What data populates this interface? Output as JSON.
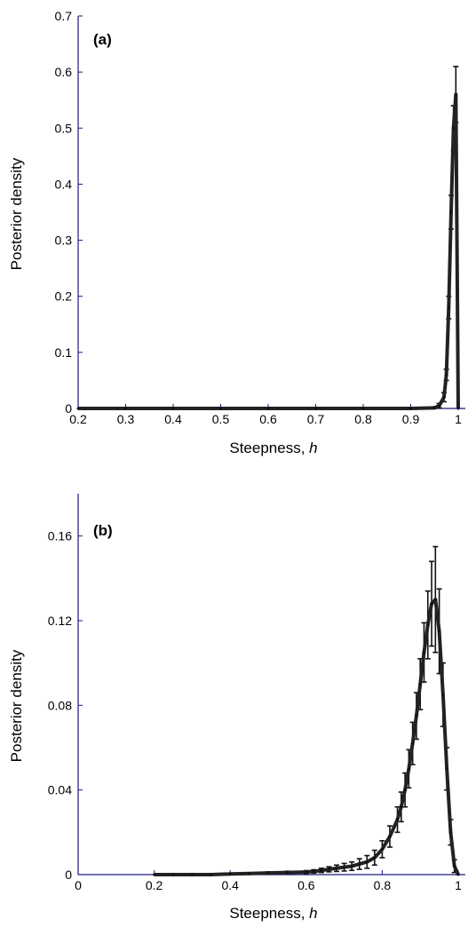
{
  "chart_data": [
    {
      "type": "line",
      "panel_label": "(a)",
      "xlabel_prefix": "Steepness, ",
      "xlabel_var": "h",
      "ylabel": "Posterior density",
      "xlim": [
        0.2,
        1.0
      ],
      "ylim": [
        0,
        0.7
      ],
      "xticks": [
        0.2,
        0.3,
        0.4,
        0.5,
        0.6,
        0.7,
        0.8,
        0.9,
        1.0
      ],
      "xtick_labels": [
        "0.2",
        "0.3",
        "0.4",
        "0.5",
        "0.6",
        "0.7",
        "0.8",
        "0.9",
        "1"
      ],
      "yticks": [
        0,
        0.1,
        0.2,
        0.3,
        0.4,
        0.5,
        0.6,
        0.7
      ],
      "ytick_labels": [
        "0",
        "0.1",
        "0.2",
        "0.3",
        "0.4",
        "0.5",
        "0.6",
        "0.7"
      ],
      "x": [
        0.2,
        0.3,
        0.4,
        0.5,
        0.6,
        0.7,
        0.8,
        0.9,
        0.95,
        0.96,
        0.97,
        0.975,
        0.98,
        0.985,
        0.99,
        0.995,
        1.0
      ],
      "y": [
        0,
        0,
        0,
        0,
        0,
        0,
        0,
        0,
        0.001,
        0.005,
        0.02,
        0.06,
        0.18,
        0.35,
        0.5,
        0.56,
        0
      ],
      "err": [
        0,
        0,
        0,
        0,
        0,
        0,
        0,
        0,
        0.002,
        0.004,
        0.008,
        0.01,
        0.02,
        0.03,
        0.04,
        0.05,
        0
      ]
    },
    {
      "type": "line",
      "panel_label": "(b)",
      "xlabel_prefix": "Steepness, ",
      "xlabel_var": "h",
      "ylabel": "Posterior density",
      "xlim": [
        0,
        1.0
      ],
      "ylim": [
        0,
        0.18
      ],
      "xticks": [
        0,
        0.2,
        0.4,
        0.6,
        0.8,
        1.0
      ],
      "xtick_labels": [
        "0",
        "0.2",
        "0.4",
        "0.6",
        "0.8",
        "1"
      ],
      "yticks": [
        0,
        0.04,
        0.08,
        0.12,
        0.16
      ],
      "ytick_labels": [
        "0",
        "0.04",
        "0.08",
        "0.12",
        "0.16"
      ],
      "x": [
        0.2,
        0.25,
        0.3,
        0.35,
        0.4,
        0.45,
        0.5,
        0.55,
        0.6,
        0.62,
        0.64,
        0.66,
        0.68,
        0.7,
        0.72,
        0.74,
        0.76,
        0.78,
        0.8,
        0.82,
        0.84,
        0.85,
        0.86,
        0.87,
        0.88,
        0.89,
        0.9,
        0.91,
        0.92,
        0.93,
        0.94,
        0.95,
        0.96,
        0.97,
        0.98,
        0.99,
        1.0
      ],
      "y": [
        0,
        0,
        0,
        0,
        0.0003,
        0.0005,
        0.0008,
        0.001,
        0.0012,
        0.0015,
        0.002,
        0.0025,
        0.003,
        0.0035,
        0.004,
        0.005,
        0.006,
        0.008,
        0.012,
        0.018,
        0.026,
        0.032,
        0.04,
        0.05,
        0.062,
        0.075,
        0.09,
        0.105,
        0.118,
        0.128,
        0.13,
        0.115,
        0.085,
        0.05,
        0.02,
        0.004,
        0
      ],
      "err": [
        0,
        0,
        0,
        0,
        0.0003,
        0.0004,
        0.0005,
        0.0006,
        0.0007,
        0.0008,
        0.001,
        0.0012,
        0.0015,
        0.0018,
        0.002,
        0.0025,
        0.003,
        0.0035,
        0.004,
        0.005,
        0.006,
        0.007,
        0.008,
        0.009,
        0.01,
        0.011,
        0.012,
        0.014,
        0.016,
        0.02,
        0.025,
        0.02,
        0.015,
        0.01,
        0.006,
        0.003,
        0
      ]
    }
  ]
}
